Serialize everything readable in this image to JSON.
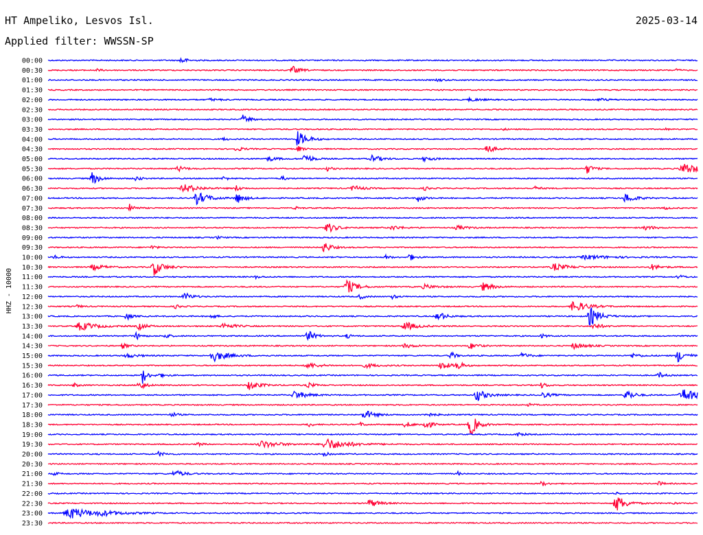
{
  "header": {
    "station_title": "HT Ampeliko, Lesvos Isl.",
    "date": "2025-03-14",
    "filter_line": "Applied filter: WWSSN-SP"
  },
  "chart_data": {
    "type": "line",
    "ylabel": "HHZ - 10000",
    "colors": [
      "#0000ff",
      "#ff0033"
    ],
    "rows": [
      {
        "label": "00:00",
        "events": [
          [
            0.205,
            6,
            0.004
          ]
        ]
      },
      {
        "label": "00:30",
        "events": [
          [
            0.376,
            6,
            0.006
          ],
          [
            0.074,
            2,
            0.004
          ],
          [
            0.967,
            2,
            0.003
          ]
        ]
      },
      {
        "label": "01:00",
        "events": [
          [
            0.6,
            2,
            0.005
          ]
        ]
      },
      {
        "label": "01:30",
        "events": []
      },
      {
        "label": "02:00",
        "events": [
          [
            0.65,
            2,
            0.01
          ],
          [
            0.25,
            1.5,
            0.01
          ],
          [
            0.85,
            1.5,
            0.01
          ]
        ]
      },
      {
        "label": "02:30",
        "events": []
      },
      {
        "label": "03:00",
        "events": [
          [
            0.3,
            6,
            0.006
          ]
        ]
      },
      {
        "label": "03:30",
        "events": [
          [
            0.7,
            1.5,
            0.003
          ],
          [
            0.95,
            1.5,
            0.003
          ]
        ]
      },
      {
        "label": "04:00",
        "events": [
          [
            0.385,
            11,
            0.008
          ],
          [
            0.27,
            2,
            0.004
          ]
        ]
      },
      {
        "label": "04:30",
        "events": [
          [
            0.675,
            7,
            0.006
          ],
          [
            0.29,
            3,
            0.006
          ],
          [
            0.385,
            4,
            0.004
          ]
        ]
      },
      {
        "label": "05:00",
        "events": [
          [
            0.395,
            8,
            0.006
          ],
          [
            0.5,
            5,
            0.008
          ],
          [
            0.34,
            3,
            0.008
          ],
          [
            0.58,
            3,
            0.008
          ]
        ]
      },
      {
        "label": "05:30",
        "events": [
          [
            0.83,
            7,
            0.005
          ],
          [
            0.98,
            8,
            0.015
          ],
          [
            0.2,
            4,
            0.006
          ],
          [
            0.43,
            3,
            0.004
          ]
        ]
      },
      {
        "label": "06:00",
        "events": [
          [
            0.068,
            9,
            0.006
          ],
          [
            0.135,
            4,
            0.004
          ],
          [
            0.27,
            3,
            0.004
          ],
          [
            0.36,
            3,
            0.004
          ]
        ]
      },
      {
        "label": "06:30",
        "events": [
          [
            0.21,
            6,
            0.012
          ],
          [
            0.29,
            4,
            0.004
          ],
          [
            0.47,
            4,
            0.008
          ],
          [
            0.58,
            3,
            0.004
          ],
          [
            0.75,
            3,
            0.004
          ]
        ]
      },
      {
        "label": "07:00",
        "events": [
          [
            0.23,
            9,
            0.01
          ],
          [
            0.29,
            8,
            0.006
          ],
          [
            0.57,
            5,
            0.005
          ],
          [
            0.89,
            7,
            0.008
          ]
        ]
      },
      {
        "label": "07:30",
        "events": [
          [
            0.126,
            6,
            0.004
          ],
          [
            0.38,
            2,
            0.004
          ],
          [
            0.95,
            2,
            0.004
          ]
        ]
      },
      {
        "label": "08:00",
        "events": []
      },
      {
        "label": "08:30",
        "events": [
          [
            0.43,
            8,
            0.007
          ],
          [
            0.53,
            3,
            0.008
          ],
          [
            0.63,
            3,
            0.008
          ],
          [
            0.92,
            3,
            0.008
          ]
        ]
      },
      {
        "label": "09:00",
        "events": [
          [
            0.26,
            2,
            0.004
          ]
        ]
      },
      {
        "label": "09:30",
        "events": [
          [
            0.425,
            8,
            0.006
          ],
          [
            0.16,
            3,
            0.004
          ]
        ]
      },
      {
        "label": "10:00",
        "events": [
          [
            0.556,
            6,
            0.004
          ],
          [
            0.01,
            3,
            0.004
          ],
          [
            0.83,
            3,
            0.02
          ],
          [
            0.52,
            3,
            0.004
          ]
        ]
      },
      {
        "label": "10:30",
        "events": [
          [
            0.163,
            12,
            0.008
          ],
          [
            0.78,
            5,
            0.012
          ],
          [
            0.93,
            4,
            0.008
          ],
          [
            0.07,
            4,
            0.01
          ]
        ]
      },
      {
        "label": "11:00",
        "events": [
          [
            0.32,
            2,
            0.004
          ],
          [
            0.97,
            4,
            0.004
          ]
        ]
      },
      {
        "label": "11:30",
        "events": [
          [
            0.46,
            11,
            0.008
          ],
          [
            0.67,
            6,
            0.008
          ],
          [
            0.58,
            3,
            0.01
          ]
        ]
      },
      {
        "label": "12:00",
        "events": [
          [
            0.21,
            6,
            0.006
          ],
          [
            0.48,
            4,
            0.004
          ],
          [
            0.53,
            3,
            0.004
          ]
        ]
      },
      {
        "label": "12:30",
        "events": [
          [
            0.81,
            8,
            0.012
          ],
          [
            0.196,
            3,
            0.004
          ],
          [
            0.045,
            2,
            0.004
          ]
        ]
      },
      {
        "label": "13:00",
        "events": [
          [
            0.835,
            14,
            0.008
          ],
          [
            0.12,
            6,
            0.004
          ],
          [
            0.6,
            8,
            0.006
          ],
          [
            0.25,
            4,
            0.004
          ]
        ]
      },
      {
        "label": "13:30",
        "events": [
          [
            0.05,
            6,
            0.014
          ],
          [
            0.14,
            5,
            0.006
          ],
          [
            0.55,
            6,
            0.01
          ],
          [
            0.84,
            4,
            0.008
          ],
          [
            0.27,
            4,
            0.01
          ]
        ]
      },
      {
        "label": "14:00",
        "events": [
          [
            0.4,
            8,
            0.006
          ],
          [
            0.135,
            6,
            0.004
          ],
          [
            0.18,
            4,
            0.004
          ],
          [
            0.46,
            3,
            0.004
          ],
          [
            0.76,
            3,
            0.004
          ]
        ]
      },
      {
        "label": "14:30",
        "events": [
          [
            0.115,
            4,
            0.004
          ],
          [
            0.65,
            5,
            0.006
          ],
          [
            0.81,
            4,
            0.01
          ],
          [
            0.55,
            3,
            0.008
          ]
        ]
      },
      {
        "label": "15:00",
        "events": [
          [
            0.255,
            8,
            0.012
          ],
          [
            0.97,
            9,
            0.007
          ],
          [
            0.62,
            6,
            0.004
          ],
          [
            0.73,
            4,
            0.006
          ],
          [
            0.12,
            3,
            0.01
          ],
          [
            0.9,
            3,
            0.008
          ]
        ]
      },
      {
        "label": "15:30",
        "events": [
          [
            0.605,
            8,
            0.006
          ],
          [
            0.63,
            9,
            0.004
          ],
          [
            0.4,
            4,
            0.01
          ],
          [
            0.49,
            3,
            0.01
          ]
        ]
      },
      {
        "label": "16:00",
        "events": [
          [
            0.145,
            13,
            0.004
          ],
          [
            0.94,
            5,
            0.004
          ],
          [
            0.17,
            3,
            0.006
          ]
        ]
      },
      {
        "label": "16:30",
        "events": [
          [
            0.14,
            8,
            0.005
          ],
          [
            0.31,
            7,
            0.008
          ],
          [
            0.4,
            4,
            0.005
          ],
          [
            0.76,
            4,
            0.005
          ],
          [
            0.04,
            3,
            0.004
          ]
        ]
      },
      {
        "label": "17:00",
        "events": [
          [
            0.66,
            9,
            0.008
          ],
          [
            0.89,
            9,
            0.006
          ],
          [
            0.98,
            9,
            0.015
          ],
          [
            0.38,
            6,
            0.01
          ],
          [
            0.76,
            4,
            0.008
          ]
        ]
      },
      {
        "label": "17:30",
        "events": [
          [
            0.74,
            2,
            0.004
          ]
        ]
      },
      {
        "label": "18:00",
        "events": [
          [
            0.487,
            7,
            0.008
          ],
          [
            0.19,
            4,
            0.004
          ],
          [
            0.58,
            3,
            0.008
          ]
        ]
      },
      {
        "label": "18:30",
        "events": [
          [
            0.65,
            18,
            0.006
          ],
          [
            0.58,
            9,
            0.005
          ],
          [
            0.4,
            5,
            0.003
          ],
          [
            0.55,
            4,
            0.006
          ],
          [
            0.48,
            3,
            0.004
          ]
        ]
      },
      {
        "label": "19:00",
        "events": [
          [
            0.72,
            4,
            0.005
          ]
        ]
      },
      {
        "label": "19:30",
        "events": [
          [
            0.43,
            8,
            0.018
          ],
          [
            0.33,
            5,
            0.015
          ],
          [
            0.23,
            3,
            0.004
          ]
        ]
      },
      {
        "label": "20:00",
        "events": [
          [
            0.425,
            6,
            0.004
          ],
          [
            0.17,
            3,
            0.006
          ]
        ]
      },
      {
        "label": "20:30",
        "events": []
      },
      {
        "label": "21:00",
        "events": [
          [
            0.195,
            5,
            0.008
          ],
          [
            0.63,
            4,
            0.002
          ],
          [
            0.01,
            2,
            0.004
          ]
        ]
      },
      {
        "label": "21:30",
        "events": [
          [
            0.76,
            4,
            0.004
          ],
          [
            0.94,
            3,
            0.004
          ]
        ]
      },
      {
        "label": "22:00",
        "events": [
          [
            0.875,
            3,
            0.002
          ]
        ]
      },
      {
        "label": "22:30",
        "events": [
          [
            0.875,
            13,
            0.008
          ],
          [
            0.495,
            6,
            0.008
          ],
          [
            0.96,
            2,
            0.004
          ]
        ]
      },
      {
        "label": "23:00",
        "events": [
          [
            0.035,
            8,
            0.02
          ],
          [
            0.085,
            2,
            0.02
          ]
        ]
      },
      {
        "label": "23:30",
        "events": []
      }
    ]
  }
}
